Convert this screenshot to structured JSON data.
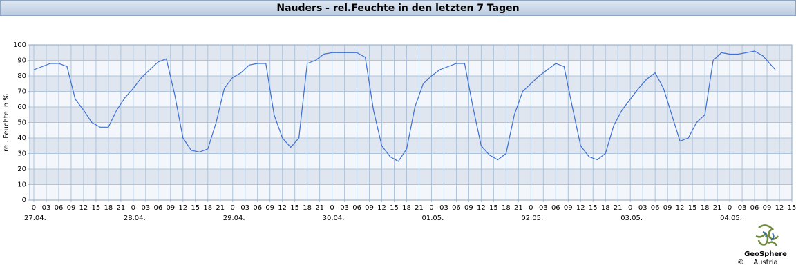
{
  "chart_data": {
    "type": "line",
    "title": "Nauders - rel.Feuchte in den letzten 7 Tagen",
    "y_label": "rel. Feuchte in %",
    "logo": {
      "name": "GeoSphere",
      "sub": "Austria",
      "copyright": "©"
    },
    "x": [
      0,
      2,
      4,
      6,
      8,
      10,
      12,
      14,
      16,
      18,
      20,
      22,
      24,
      26,
      28,
      30,
      32,
      34,
      36,
      38,
      40,
      42,
      44,
      46,
      48,
      50,
      52,
      54,
      56,
      58,
      60,
      62,
      64,
      66,
      68,
      70,
      72,
      74,
      76,
      78,
      80,
      82,
      84,
      86,
      88,
      90,
      92,
      94,
      96,
      98,
      100,
      102,
      104,
      106,
      108,
      110,
      112,
      114,
      116,
      118,
      120,
      122,
      124,
      126,
      128,
      130,
      132,
      134,
      136,
      138,
      140,
      142,
      144,
      146,
      148,
      150,
      152,
      154,
      156,
      158,
      160,
      162,
      164,
      166,
      168,
      170,
      172,
      174,
      176,
      178,
      179
    ],
    "series": [
      {
        "name": "rel. Feuchte",
        "color": "#3d6fd6",
        "values": [
          84,
          86,
          88,
          88,
          86,
          65,
          58,
          50,
          47,
          47,
          58,
          66,
          72,
          79,
          84,
          89,
          91,
          68,
          40,
          32,
          31,
          33,
          50,
          72,
          79,
          82,
          87,
          88,
          88,
          55,
          40,
          34,
          40,
          88,
          90,
          94,
          95,
          95,
          95,
          95,
          92,
          58,
          35,
          28,
          25,
          33,
          60,
          75,
          80,
          84,
          86,
          88,
          88,
          60,
          35,
          29,
          26,
          30,
          55,
          70,
          75,
          80,
          84,
          88,
          86,
          60,
          35,
          28,
          26,
          30,
          48,
          58,
          65,
          72,
          78,
          82,
          72,
          55,
          38,
          40,
          50,
          55,
          90,
          95,
          94,
          94,
          95,
          96,
          93,
          87,
          84
        ]
      }
    ],
    "xlim": [
      -1,
      183
    ],
    "xticks": [
      {
        "value": 0,
        "label": "0"
      },
      {
        "value": 3,
        "label": "03"
      },
      {
        "value": 6,
        "label": "06"
      },
      {
        "value": 9,
        "label": "09"
      },
      {
        "value": 12,
        "label": "12"
      },
      {
        "value": 15,
        "label": "15"
      },
      {
        "value": 18,
        "label": "18"
      },
      {
        "value": 21,
        "label": "21"
      },
      {
        "value": 24,
        "label": "0"
      },
      {
        "value": 27,
        "label": "03"
      },
      {
        "value": 30,
        "label": "06"
      },
      {
        "value": 33,
        "label": "09"
      },
      {
        "value": 36,
        "label": "12"
      },
      {
        "value": 39,
        "label": "15"
      },
      {
        "value": 42,
        "label": "18"
      },
      {
        "value": 45,
        "label": "21"
      },
      {
        "value": 48,
        "label": "0"
      },
      {
        "value": 51,
        "label": "03"
      },
      {
        "value": 54,
        "label": "06"
      },
      {
        "value": 57,
        "label": "09"
      },
      {
        "value": 60,
        "label": "12"
      },
      {
        "value": 63,
        "label": "15"
      },
      {
        "value": 66,
        "label": "18"
      },
      {
        "value": 69,
        "label": "21"
      },
      {
        "value": 72,
        "label": "0"
      },
      {
        "value": 75,
        "label": "03"
      },
      {
        "value": 78,
        "label": "06"
      },
      {
        "value": 81,
        "label": "09"
      },
      {
        "value": 84,
        "label": "12"
      },
      {
        "value": 87,
        "label": "15"
      },
      {
        "value": 90,
        "label": "18"
      },
      {
        "value": 93,
        "label": "21"
      },
      {
        "value": 96,
        "label": "0"
      },
      {
        "value": 99,
        "label": "03"
      },
      {
        "value": 102,
        "label": "06"
      },
      {
        "value": 105,
        "label": "09"
      },
      {
        "value": 108,
        "label": "12"
      },
      {
        "value": 111,
        "label": "15"
      },
      {
        "value": 114,
        "label": "18"
      },
      {
        "value": 117,
        "label": "21"
      },
      {
        "value": 120,
        "label": "0"
      },
      {
        "value": 123,
        "label": "03"
      },
      {
        "value": 126,
        "label": "06"
      },
      {
        "value": 129,
        "label": "09"
      },
      {
        "value": 132,
        "label": "12"
      },
      {
        "value": 135,
        "label": "15"
      },
      {
        "value": 138,
        "label": "18"
      },
      {
        "value": 141,
        "label": "21"
      },
      {
        "value": 144,
        "label": "0"
      },
      {
        "value": 147,
        "label": "03"
      },
      {
        "value": 150,
        "label": "06"
      },
      {
        "value": 153,
        "label": "09"
      },
      {
        "value": 156,
        "label": "12"
      },
      {
        "value": 159,
        "label": "15"
      },
      {
        "value": 162,
        "label": "18"
      },
      {
        "value": 165,
        "label": "21"
      },
      {
        "value": 168,
        "label": "0"
      },
      {
        "value": 171,
        "label": "03"
      },
      {
        "value": 174,
        "label": "06"
      },
      {
        "value": 177,
        "label": "09"
      },
      {
        "value": 180,
        "label": "12"
      },
      {
        "value": 183,
        "label": "15"
      }
    ],
    "dates": [
      {
        "value": 0,
        "label": "27.04."
      },
      {
        "value": 24,
        "label": "28.04."
      },
      {
        "value": 48,
        "label": "29.04."
      },
      {
        "value": 72,
        "label": "30.04."
      },
      {
        "value": 96,
        "label": "01.05."
      },
      {
        "value": 120,
        "label": "02.05."
      },
      {
        "value": 144,
        "label": "03.05."
      },
      {
        "value": 168,
        "label": "04.05."
      }
    ],
    "ylim": [
      0,
      100
    ],
    "yticks": [
      0,
      10,
      20,
      30,
      40,
      50,
      60,
      70,
      80,
      90,
      100
    ],
    "grid": true
  }
}
